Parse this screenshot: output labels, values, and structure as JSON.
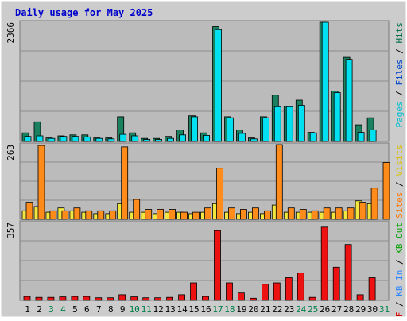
{
  "chart_data": {
    "title": "Daily usage for May 2025",
    "type": "bar",
    "categories": [
      "1",
      "2",
      "3",
      "4",
      "5",
      "6",
      "7",
      "8",
      "9",
      "10",
      "11",
      "12",
      "13",
      "14",
      "15",
      "16",
      "17",
      "18",
      "19",
      "20",
      "21",
      "22",
      "23",
      "24",
      "25",
      "26",
      "27",
      "28",
      "29",
      "30",
      "31"
    ],
    "weekend_days": [
      3,
      4,
      10,
      11,
      17,
      18,
      24,
      25,
      31
    ],
    "colors": {
      "title": "#0000cc",
      "frame": "#cccccc",
      "plot_bg": "#bbbbbb",
      "grid": "#8c8c8c",
      "weekday": "#000000",
      "weekend": "#00804a"
    },
    "panels": [
      {
        "name": "hits-files-pages",
        "max_label": "2366",
        "ymax": 2366,
        "legend": [
          {
            "text": "Pages",
            "color": "#00c0d0"
          },
          {
            "text": " / ",
            "color": "#000000"
          },
          {
            "text": "Files",
            "color": "#0044cc"
          },
          {
            "text": " / ",
            "color": "#000000"
          },
          {
            "text": "Hits",
            "color": "#006e4c"
          }
        ],
        "series": [
          {
            "name": "Hits",
            "color": "#1a8060",
            "values": [
              170,
              390,
              70,
              110,
              130,
              130,
              70,
              70,
              490,
              170,
              60,
              60,
              100,
              230,
              510,
              170,
              2280,
              490,
              230,
              70,
              490,
              920,
              700,
              820,
              180,
              2400,
              1000,
              1670,
              330,
              470,
              0
            ]
          },
          {
            "name": "Files",
            "color": "#00e0f0",
            "values": [
              100,
              110,
              60,
              100,
              100,
              90,
              60,
              50,
              140,
              110,
              40,
              40,
              60,
              130,
              490,
              120,
              2220,
              470,
              160,
              50,
              470,
              690,
              690,
              720,
              170,
              2380,
              970,
              1630,
              180,
              230,
              0
            ]
          },
          {
            "name": "Pages",
            "color": "#00b0b0",
            "values": [
              0,
              0,
              0,
              0,
              0,
              0,
              0,
              0,
              0,
              0,
              0,
              0,
              0,
              0,
              0,
              0,
              0,
              0,
              0,
              0,
              0,
              0,
              0,
              0,
              0,
              0,
              0,
              0,
              0,
              0,
              0
            ]
          }
        ]
      },
      {
        "name": "visits-sites",
        "max_label": "263",
        "ymax": 263,
        "legend": [
          {
            "text": "Sites",
            "color": "#ff7700"
          },
          {
            "text": " / ",
            "color": "#000000"
          },
          {
            "text": "Visits",
            "color": "#d8c000"
          }
        ],
        "series": [
          {
            "name": "Visits",
            "color": "#f2e640",
            "values": [
              30,
              45,
              25,
              40,
              30,
              25,
              20,
              20,
              55,
              25,
              25,
              20,
              25,
              25,
              20,
              25,
              55,
              25,
              20,
              25,
              20,
              50,
              25,
              25,
              25,
              25,
              25,
              30,
              65,
              55,
              0
            ]
          },
          {
            "name": "Sites",
            "color": "#ff8c1a",
            "values": [
              60,
              260,
              30,
              30,
              40,
              30,
              30,
              30,
              255,
              70,
              35,
              35,
              35,
              25,
              25,
              40,
              180,
              40,
              35,
              40,
              30,
              265,
              40,
              35,
              30,
              40,
              40,
              40,
              60,
              110,
              200
            ]
          }
        ]
      },
      {
        "name": "kb",
        "max_label": "357",
        "ymax": 357,
        "legend": [
          {
            "text": "KB F",
            "color": "#d80000"
          },
          {
            "text": " / ",
            "color": "#000000"
          },
          {
            "text": "KB In",
            "color": "#2e86ff"
          },
          {
            "text": " / ",
            "color": "#000000"
          },
          {
            "text": "KB Out",
            "color": "#00a000"
          }
        ],
        "series": [
          {
            "name": "KB F",
            "color": "#ee1111",
            "values": [
              18,
              14,
              14,
              16,
              18,
              18,
              12,
              12,
              26,
              16,
              12,
              12,
              14,
              26,
              80,
              18,
              320,
              80,
              34,
              10,
              74,
              80,
              104,
              126,
              14,
              336,
              152,
              256,
              26,
              104,
              0
            ]
          }
        ]
      }
    ]
  }
}
